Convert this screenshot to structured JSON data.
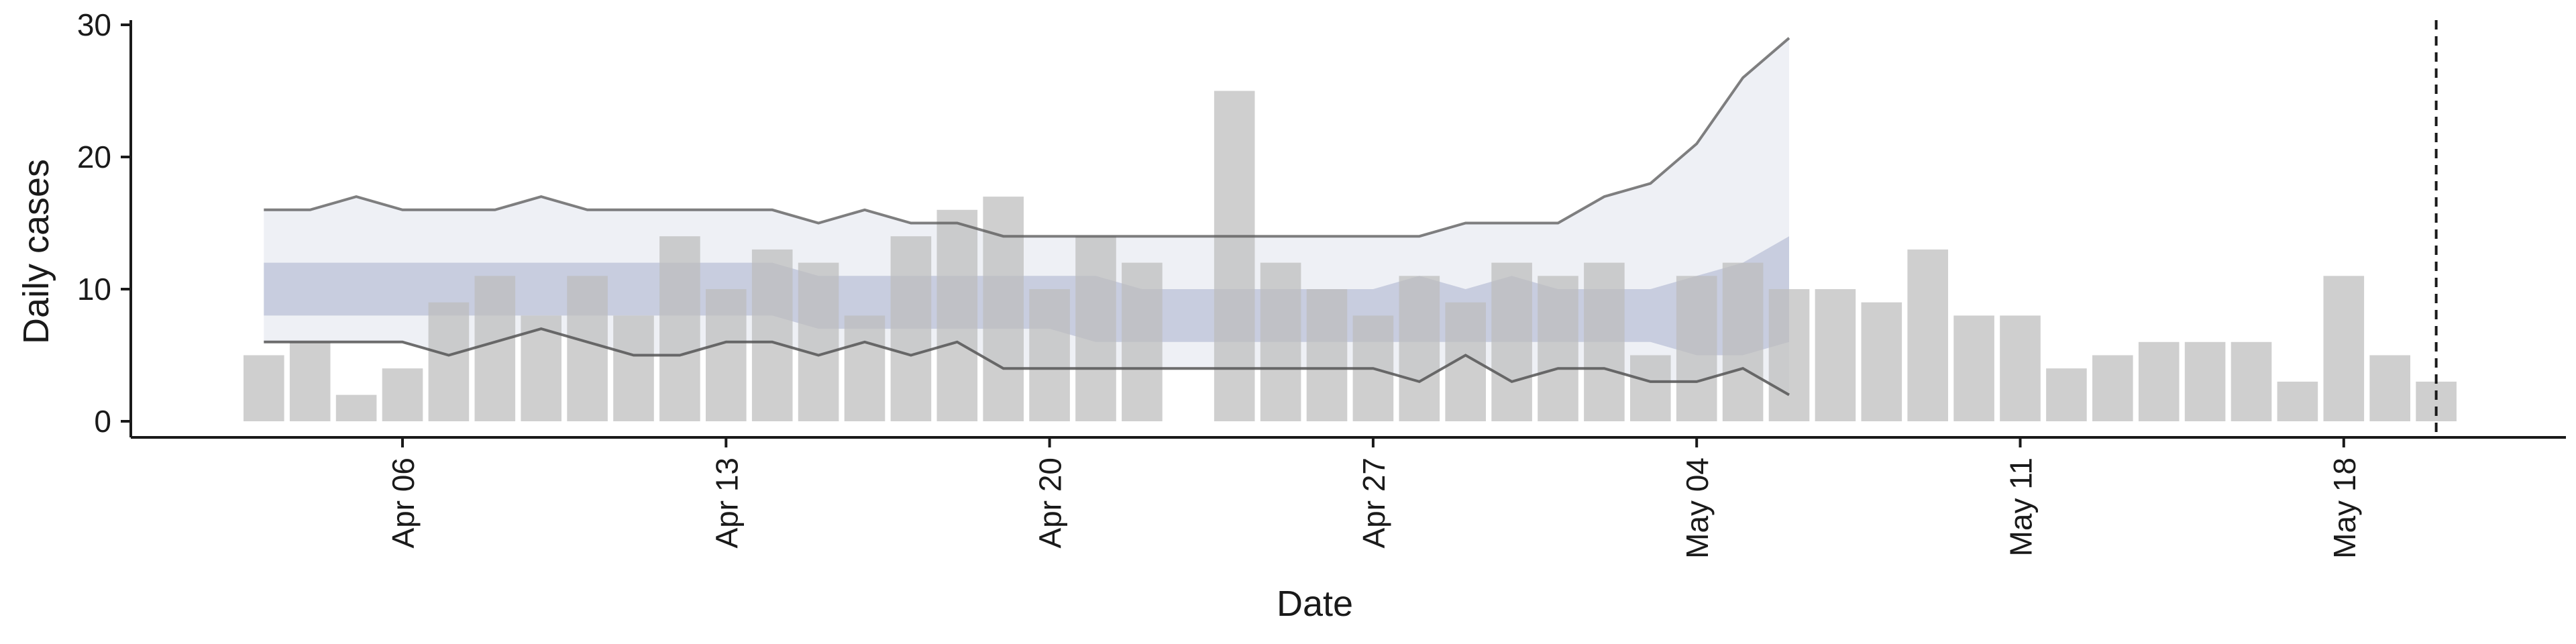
{
  "chart_data": {
    "type": "bar",
    "xlabel": "Date",
    "ylabel": "Daily cases",
    "ylim": [
      -1.5,
      30
    ],
    "yticks": [
      0,
      10,
      20,
      30
    ],
    "xticks": [
      {
        "date": "2020-04-06",
        "label": "Apr 06"
      },
      {
        "date": "2020-04-13",
        "label": "Apr 13"
      },
      {
        "date": "2020-04-20",
        "label": "Apr 20"
      },
      {
        "date": "2020-04-27",
        "label": "Apr 27"
      },
      {
        "date": "2020-05-04",
        "label": "May 04"
      },
      {
        "date": "2020-05-11",
        "label": "May 11"
      },
      {
        "date": "2020-05-18",
        "label": "May 18"
      }
    ],
    "bars": {
      "dates": [
        "2020-04-03",
        "2020-04-04",
        "2020-04-05",
        "2020-04-06",
        "2020-04-07",
        "2020-04-08",
        "2020-04-09",
        "2020-04-10",
        "2020-04-11",
        "2020-04-12",
        "2020-04-13",
        "2020-04-14",
        "2020-04-15",
        "2020-04-16",
        "2020-04-17",
        "2020-04-18",
        "2020-04-19",
        "2020-04-20",
        "2020-04-21",
        "2020-04-22",
        "2020-04-23",
        "2020-04-24",
        "2020-04-25",
        "2020-04-26",
        "2020-04-27",
        "2020-04-28",
        "2020-04-29",
        "2020-04-30",
        "2020-05-01",
        "2020-05-02",
        "2020-05-03",
        "2020-05-04",
        "2020-05-05",
        "2020-05-06",
        "2020-05-07",
        "2020-05-08",
        "2020-05-09",
        "2020-05-10",
        "2020-05-11",
        "2020-05-12",
        "2020-05-13",
        "2020-05-14",
        "2020-05-15",
        "2020-05-16",
        "2020-05-17",
        "2020-05-18",
        "2020-05-19",
        "2020-05-20"
      ],
      "values": [
        5,
        6,
        2,
        4,
        9,
        11,
        8,
        11,
        8,
        14,
        10,
        13,
        12,
        8,
        14,
        16,
        17,
        10,
        14,
        12,
        0,
        25,
        12,
        10,
        8,
        11,
        9,
        12,
        11,
        12,
        5,
        11,
        12,
        10,
        10,
        9,
        13,
        8,
        8,
        4,
        5,
        6,
        6,
        6,
        3,
        11,
        5,
        3
      ]
    },
    "forecast": {
      "dates": [
        "2020-04-03",
        "2020-04-04",
        "2020-04-05",
        "2020-04-06",
        "2020-04-07",
        "2020-04-08",
        "2020-04-09",
        "2020-04-10",
        "2020-04-11",
        "2020-04-12",
        "2020-04-13",
        "2020-04-14",
        "2020-04-15",
        "2020-04-16",
        "2020-04-17",
        "2020-04-18",
        "2020-04-19",
        "2020-04-20",
        "2020-04-21",
        "2020-04-22",
        "2020-04-23",
        "2020-04-24",
        "2020-04-25",
        "2020-04-26",
        "2020-04-27",
        "2020-04-28",
        "2020-04-29",
        "2020-04-30",
        "2020-05-01",
        "2020-05-02",
        "2020-05-03",
        "2020-05-04",
        "2020-05-05",
        "2020-05-06"
      ],
      "outer_upper": [
        16,
        16,
        17,
        16,
        16,
        16,
        17,
        16,
        16,
        16,
        16,
        16,
        15,
        16,
        15,
        15,
        14,
        14,
        14,
        14,
        14,
        14,
        14,
        14,
        14,
        14,
        15,
        15,
        15,
        17,
        18,
        21,
        26,
        29
      ],
      "outer_lower": [
        6,
        6,
        6,
        6,
        5,
        6,
        7,
        6,
        5,
        5,
        6,
        6,
        5,
        6,
        5,
        6,
        4,
        4,
        4,
        4,
        4,
        4,
        4,
        4,
        4,
        3,
        5,
        3,
        4,
        4,
        3,
        3,
        4,
        2
      ],
      "inner_upper": [
        12,
        12,
        12,
        12,
        12,
        12,
        12,
        12,
        12,
        12,
        12,
        12,
        11,
        11,
        11,
        11,
        11,
        11,
        11,
        10,
        10,
        10,
        10,
        10,
        10,
        11,
        10,
        11,
        10,
        10,
        10,
        11,
        12,
        14
      ],
      "inner_lower": [
        8,
        8,
        8,
        8,
        8,
        8,
        8,
        8,
        8,
        8,
        8,
        8,
        7,
        7,
        7,
        7,
        7,
        7,
        6,
        6,
        6,
        6,
        6,
        6,
        6,
        6,
        6,
        6,
        6,
        6,
        6,
        5,
        5,
        6
      ]
    },
    "vline_date": "2020-05-20",
    "grid": false,
    "colors": {
      "bar": "#bdbdbd",
      "outer_band": "#e8ebf2",
      "inner_band": "#a9b1cc",
      "bound_line": "#555555",
      "axis": "#1a1a1a"
    }
  }
}
